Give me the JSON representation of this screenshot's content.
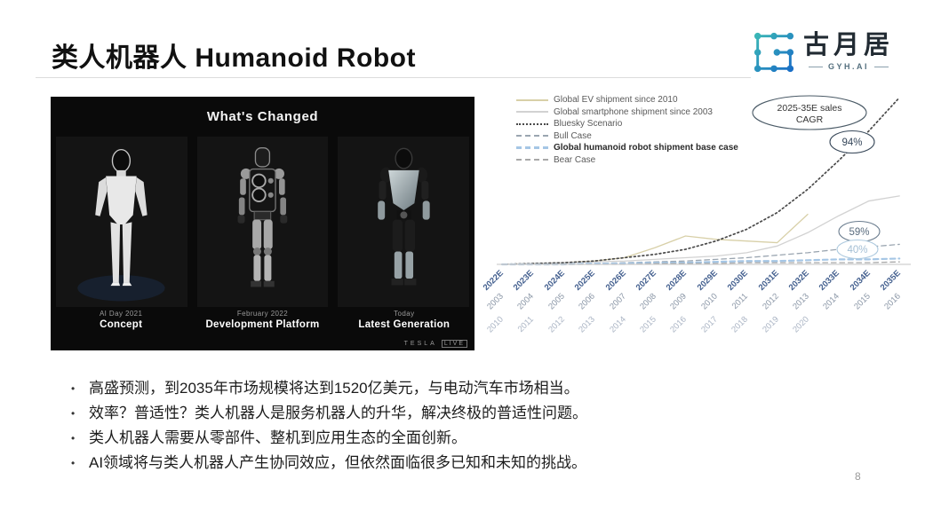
{
  "slide": {
    "title": "类人机器人 Humanoid Robot",
    "page_number": "8",
    "logo": {
      "name": "古月居",
      "sub": "GYH.AI"
    },
    "bullets": [
      "高盛预测，到2035年市场规模将达到1520亿美元，与电动汽车市场相当。",
      "效率？普适性？类人机器人是服务机器人的升华，解决终极的普适性问题。",
      "类人机器人需要从零部件、整机到应用生态的全面创新。",
      "AI领域将与类人机器人产生协同效应，但依然面临很多已知和未知的挑战。"
    ]
  },
  "tesla_panel": {
    "title": "What's Changed",
    "watermark_brand": "TESLA",
    "watermark_tag": "LIVE",
    "robots": [
      {
        "date": "AI Day 2021",
        "label": "Concept"
      },
      {
        "date": "February 2022",
        "label": "Development Platform"
      },
      {
        "date": "Today",
        "label": "Latest Generation"
      }
    ]
  },
  "chart_data": {
    "type": "line",
    "title": "",
    "xlabel": "",
    "ylabel": "",
    "y_axis_note": "no y-axis shown; series values estimated as percent of plot height",
    "ylim": [
      0,
      100
    ],
    "grid": false,
    "legend_position": "top-left",
    "x_axis_rows": [
      {
        "name": "robot_years",
        "color": "#44608f",
        "labels": [
          "2022E",
          "2023E",
          "2024E",
          "2025E",
          "2026E",
          "2027E",
          "2028E",
          "2029E",
          "2030E",
          "2031E",
          "2032E",
          "2033E",
          "2034E",
          "2035E"
        ]
      },
      {
        "name": "smartphone_years",
        "color": "#8a96a6",
        "labels": [
          "2003",
          "2004",
          "2005",
          "2006",
          "2007",
          "2008",
          "2009",
          "2010",
          "2011",
          "2012",
          "2013",
          "2014",
          "2015",
          "2016"
        ]
      },
      {
        "name": "ev_years",
        "color": "#aab4c4",
        "labels": [
          "2010",
          "2011",
          "2012",
          "2013",
          "2014",
          "2015",
          "2016",
          "2017",
          "2018",
          "2019",
          "2020"
        ]
      }
    ],
    "legend": [
      {
        "label": "Global EV shipment since 2010",
        "style": "solid",
        "color": "#d8d0a8",
        "bold": false
      },
      {
        "label": "Global smartphone shipment since 2003",
        "style": "solid",
        "color": "#d2d2d2",
        "bold": false
      },
      {
        "label": "Bluesky Scenario",
        "style": "dotted",
        "color": "#4a4a4a",
        "bold": false
      },
      {
        "label": "Bull Case",
        "style": "dashed",
        "color": "#9aa5b0",
        "bold": false
      },
      {
        "label": "Global humanoid robot shipment base case",
        "style": "dashed",
        "color": "#a5c6e5",
        "bold": true
      },
      {
        "label": "Bear Case",
        "style": "dashed",
        "color": "#a8a8a8",
        "bold": false
      }
    ],
    "series": [
      {
        "name": "Global EV shipment since 2010",
        "color": "#d8d0a8",
        "style": "solid",
        "width": 1.3,
        "x_row": "ev_years",
        "values": [
          0,
          0.5,
          1,
          2,
          4,
          10,
          17,
          15,
          14,
          13,
          30
        ]
      },
      {
        "name": "Global smartphone shipment since 2003",
        "color": "#d2d2d2",
        "style": "solid",
        "width": 1.3,
        "x_row": "smartphone_years",
        "values": [
          0,
          0.5,
          1,
          1.5,
          2,
          3,
          4,
          5,
          7,
          11,
          19,
          29,
          38,
          41
        ]
      },
      {
        "name": "Bluesky Scenario",
        "color": "#4a4a4a",
        "style": "dotted",
        "width": 1.7,
        "x_row": "robot_years",
        "values": [
          0,
          0.5,
          1,
          2,
          4,
          6,
          9,
          14,
          21,
          31,
          45,
          62,
          80,
          100
        ]
      },
      {
        "name": "Bull Case",
        "color": "#9aa5b0",
        "style": "dashed",
        "width": 1.3,
        "x_row": "robot_years",
        "values": [
          0,
          0,
          0,
          0.5,
          1,
          1.5,
          2,
          3,
          4,
          5.5,
          7,
          9,
          10.5,
          12
        ]
      },
      {
        "name": "Global humanoid robot shipment base case",
        "color": "#a5c6e5",
        "style": "dashed",
        "width": 2.2,
        "x_row": "robot_years",
        "values": [
          0,
          0,
          0,
          0.5,
          0.5,
          1,
          1,
          1.5,
          2,
          2,
          2.5,
          3,
          3,
          3.5
        ]
      },
      {
        "name": "Bear Case",
        "color": "#a8a8a8",
        "style": "dashed",
        "width": 1.3,
        "x_row": "robot_years",
        "values": [
          0,
          0,
          0,
          0,
          0,
          0.5,
          0.5,
          0.5,
          1,
          1,
          1,
          1,
          1,
          1.5
        ]
      }
    ],
    "annotations": [
      {
        "id": "cagr-title",
        "lines": [
          "2025-35E sales",
          "CAGR"
        ]
      },
      {
        "id": "bluesky-cagr",
        "lines": [
          "94%"
        ],
        "series": "Bluesky Scenario"
      },
      {
        "id": "bull-cagr",
        "lines": [
          "59%"
        ],
        "series": "Bull Case"
      },
      {
        "id": "base-cagr",
        "lines": [
          "40%"
        ],
        "series": "Global humanoid robot shipment base case"
      }
    ]
  }
}
